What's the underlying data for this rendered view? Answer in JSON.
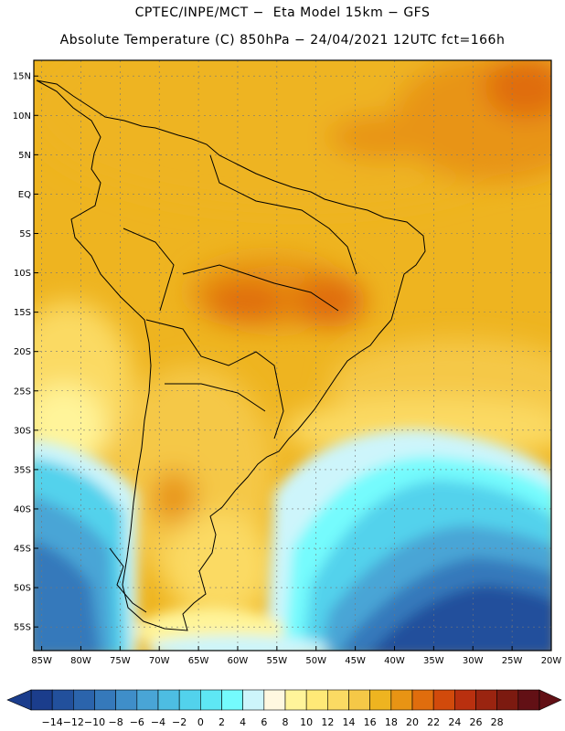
{
  "header": {
    "title_line1": "CPTEC/INPE/MCT −  Eta Model 15km − GFS",
    "title_line2": "Absolute Temperature (C) 850hPa − 24/04/2021 12UTC fct=166h"
  },
  "map": {
    "lat_labels": [
      "15N",
      "10N",
      "5N",
      "EQ",
      "5S",
      "10S",
      "15S",
      "20S",
      "25S",
      "30S",
      "35S",
      "40S",
      "45S",
      "50S",
      "55S"
    ],
    "lat_values": [
      15,
      10,
      5,
      0,
      -5,
      -10,
      -15,
      -20,
      -25,
      -30,
      -35,
      -40,
      -45,
      -50,
      -55
    ],
    "lon_labels": [
      "85W",
      "80W",
      "75W",
      "70W",
      "65W",
      "60W",
      "55W",
      "50W",
      "45W",
      "40W",
      "35W",
      "30W",
      "25W",
      "20W"
    ],
    "lon_values": [
      -85,
      -80,
      -75,
      -70,
      -65,
      -60,
      -55,
      -50,
      -45,
      -40,
      -35,
      -30,
      -25,
      -20
    ],
    "extent": {
      "lon_min": -86,
      "lon_max": -20,
      "lat_min": -58,
      "lat_max": 17
    }
  },
  "colorbar": {
    "ticks": [
      "−14",
      "−12",
      "−10",
      "−8",
      "−6",
      "−4",
      "−2",
      "0",
      "2",
      "4",
      "6",
      "8",
      "10",
      "12",
      "14",
      "16",
      "18",
      "20",
      "22",
      "24",
      "26",
      "28"
    ],
    "colors": [
      "#1b3d8c",
      "#22509c",
      "#2b64ac",
      "#3579bb",
      "#3f8ec9",
      "#49a5d6",
      "#4dbde2",
      "#52d2ec",
      "#5ee7f4",
      "#74fbfd",
      "#cdf5fb",
      "#fff8e0",
      "#fff49a",
      "#ffe977",
      "#fbda63",
      "#f5c847",
      "#eeb420",
      "#e89414",
      "#e06d0d",
      "#d24a0b",
      "#b9300f",
      "#9a2410",
      "#7c1a10",
      "#621015"
    ]
  }
}
